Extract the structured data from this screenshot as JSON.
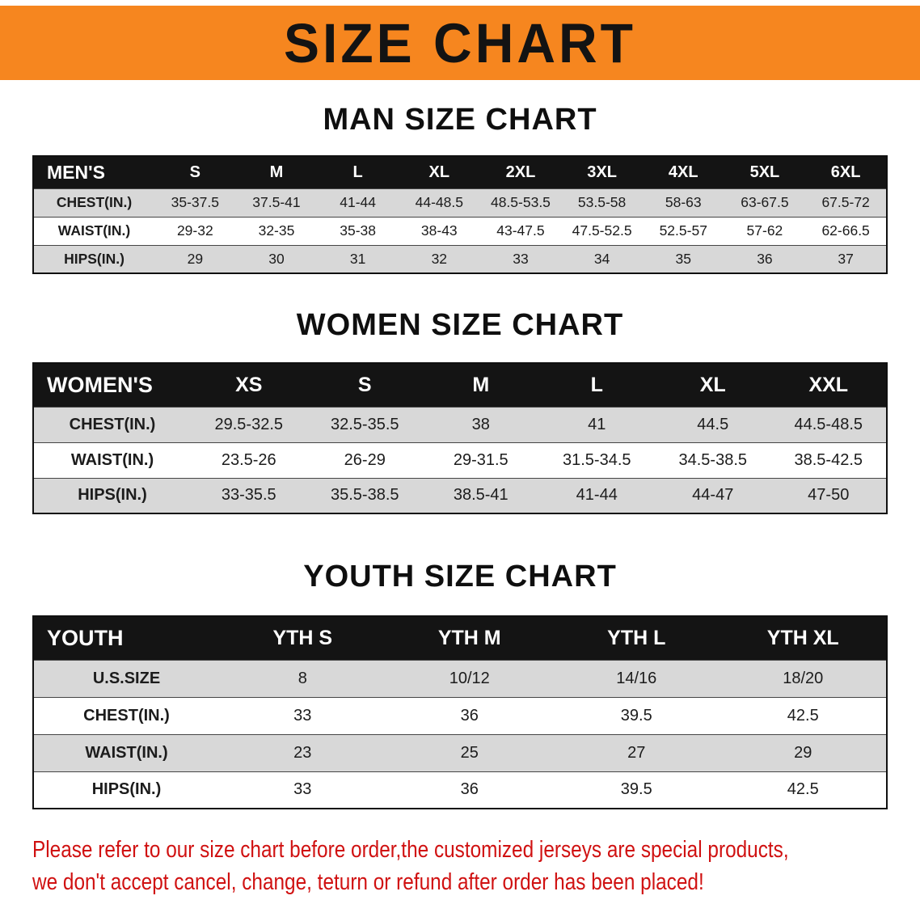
{
  "banner": {
    "title": "SIZE CHART",
    "bg_color": "#f6861f",
    "text_color": "#131313"
  },
  "sections": [
    {
      "id": "men",
      "heading": "MAN SIZE CHART",
      "table": {
        "header": [
          "MEN'S",
          "S",
          "M",
          "L",
          "XL",
          "2XL",
          "3XL",
          "4XL",
          "5XL",
          "6XL"
        ],
        "rows": [
          [
            "CHEST(IN.)",
            "35-37.5",
            "37.5-41",
            "41-44",
            "44-48.5",
            "48.5-53.5",
            "53.5-58",
            "58-63",
            "63-67.5",
            "67.5-72"
          ],
          [
            "WAIST(IN.)",
            "29-32",
            "32-35",
            "35-38",
            "38-43",
            "43-47.5",
            "47.5-52.5",
            "52.5-57",
            "57-62",
            "62-66.5"
          ],
          [
            "HIPS(IN.)",
            "29",
            "30",
            "31",
            "32",
            "33",
            "34",
            "35",
            "36",
            "37"
          ]
        ]
      }
    },
    {
      "id": "women",
      "heading": "WOMEN SIZE CHART",
      "table": {
        "header": [
          "WOMEN'S",
          "XS",
          "S",
          "M",
          "L",
          "XL",
          "XXL"
        ],
        "rows": [
          [
            "CHEST(IN.)",
            "29.5-32.5",
            "32.5-35.5",
            "38",
            "41",
            "44.5",
            "44.5-48.5"
          ],
          [
            "WAIST(IN.)",
            "23.5-26",
            "26-29",
            "29-31.5",
            "31.5-34.5",
            "34.5-38.5",
            "38.5-42.5"
          ],
          [
            "HIPS(IN.)",
            "33-35.5",
            "35.5-38.5",
            "38.5-41",
            "41-44",
            "44-47",
            "47-50"
          ]
        ]
      }
    },
    {
      "id": "youth",
      "heading": "YOUTH SIZE CHART",
      "table": {
        "header": [
          "YOUTH",
          "YTH S",
          "YTH M",
          "YTH L",
          "YTH XL"
        ],
        "rows": [
          [
            "U.S.SIZE",
            "8",
            "10/12",
            "14/16",
            "18/20"
          ],
          [
            "CHEST(IN.)",
            "33",
            "36",
            "39.5",
            "42.5"
          ],
          [
            "WAIST(IN.)",
            "23",
            "25",
            "27",
            "29"
          ],
          [
            "HIPS(IN.)",
            "33",
            "36",
            "39.5",
            "42.5"
          ]
        ]
      }
    }
  ],
  "disclaimer": {
    "line1": "Please refer to our size chart before order,the customized jerseys are special products,",
    "line2": "we don't accept cancel, change, teturn or refund after order has been placed!",
    "color": "#d01111"
  }
}
